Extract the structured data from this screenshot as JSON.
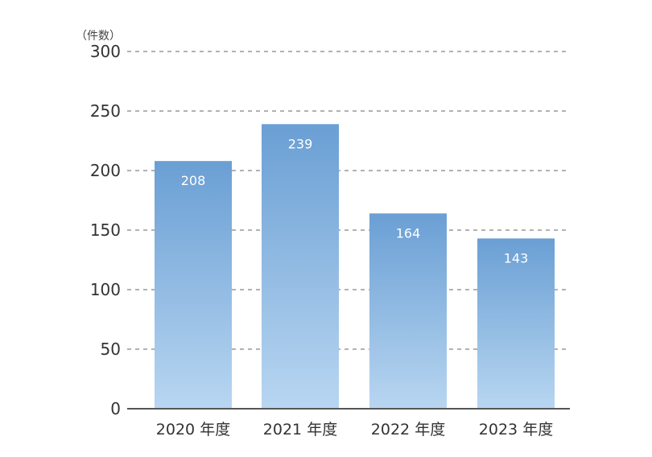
{
  "chart_data": {
    "type": "bar",
    "unit_label": "（件数）",
    "categories": [
      "2020 年度",
      "2021 年度",
      "2022 年度",
      "2023 年度"
    ],
    "values": [
      208,
      239,
      164,
      143
    ],
    "ylim": [
      0,
      300
    ],
    "yticks": [
      0,
      50,
      100,
      150,
      200,
      250,
      300
    ],
    "grid": true,
    "grid_style": "dashed",
    "bar_color_top": "#6a9fd4",
    "bar_color_bottom": "#b8d6f1",
    "value_label_color": "#ffffff",
    "axis_text_color": "#333333",
    "title": "",
    "xlabel": "",
    "ylabel": ""
  }
}
